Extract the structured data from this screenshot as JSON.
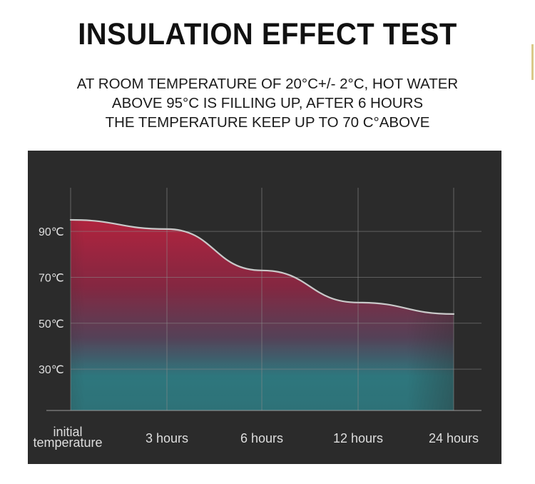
{
  "heading": {
    "title": "INSULATION EFFECT TEST",
    "lines": [
      "AT ROOM TEMPERATURE OF 20°C+/- 2°C, HOT WATER",
      "ABOVE 95°C IS FILLING UP, AFTER 6 HOURS",
      "THE TEMPERATURE KEEP UP TO 70 C°ABOVE"
    ]
  },
  "chart_data": {
    "type": "area",
    "categories": [
      "initial temperature",
      "3 hours",
      "6 hours",
      "12 hours",
      "24 hours"
    ],
    "category_lines": [
      [
        "initial",
        "temperature"
      ],
      [
        "3 hours"
      ],
      [
        "6 hours"
      ],
      [
        "12 hours"
      ],
      [
        "24 hours"
      ]
    ],
    "y_ticks": [
      {
        "value": 90,
        "label": "90℃"
      },
      {
        "value": 70,
        "label": "70℃"
      },
      {
        "value": 50,
        "label": "50℃"
      },
      {
        "value": 30,
        "label": "30℃"
      }
    ],
    "values": [
      95,
      91,
      73,
      59,
      54
    ],
    "ylim": [
      12,
      109
    ],
    "grid": true,
    "colors": {
      "panel": "#2b2b2b",
      "grid": "#8a8a8a",
      "line": "#c9c9c9",
      "hot": "#b8233f",
      "cool": "#2f8a92",
      "text": "#dedede"
    }
  }
}
